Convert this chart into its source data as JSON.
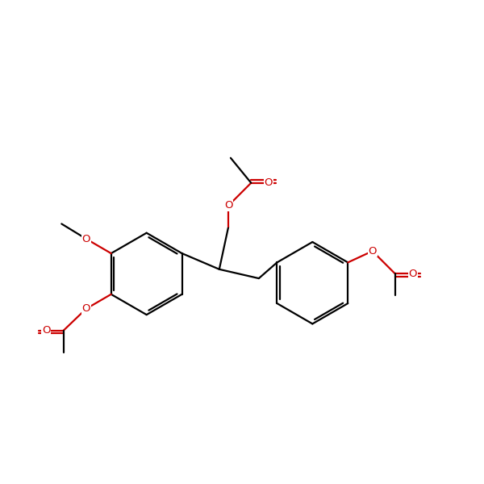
{
  "background": "#ffffff",
  "bond_color": "#000000",
  "oxygen_color": "#cc0000",
  "lw": 1.6,
  "dbo": 0.06,
  "shrink": 0.1,
  "figsize": [
    6.0,
    6.0
  ],
  "dpi": 100,
  "font_size": 9.5,
  "xlim": [
    -1.0,
    9.5
  ],
  "ylim": [
    1.0,
    7.5
  ]
}
